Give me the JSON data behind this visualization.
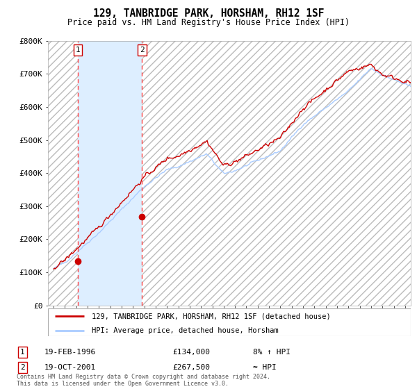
{
  "title": "129, TANBRIDGE PARK, HORSHAM, RH12 1SF",
  "subtitle": "Price paid vs. HM Land Registry's House Price Index (HPI)",
  "property_label": "129, TANBRIDGE PARK, HORSHAM, RH12 1SF (detached house)",
  "hpi_label": "HPI: Average price, detached house, Horsham",
  "sales": [
    {
      "date": 1996.12,
      "price": 134000,
      "label": "1",
      "text": "19-FEB-1996",
      "amount": "£134,000",
      "hpi_rel": "8% ↑ HPI"
    },
    {
      "date": 2001.8,
      "price": 267500,
      "label": "2",
      "text": "19-OCT-2001",
      "amount": "£267,500",
      "hpi_rel": "≈ HPI"
    }
  ],
  "hpi_color": "#aaccff",
  "property_color": "#cc0000",
  "sale_marker_color": "#cc0000",
  "dashed_line_color": "#ff4444",
  "shaded_region_color": "#ddeeff",
  "ylim": [
    0,
    800000
  ],
  "yticks": [
    0,
    100000,
    200000,
    300000,
    400000,
    500000,
    600000,
    700000,
    800000
  ],
  "ytick_labels": [
    "£0",
    "£100K",
    "£200K",
    "£300K",
    "£400K",
    "£500K",
    "£600K",
    "£700K",
    "£800K"
  ],
  "xlim": [
    1993.5,
    2025.5
  ],
  "footer": "Contains HM Land Registry data © Crown copyright and database right 2024.\nThis data is licensed under the Open Government Licence v3.0.",
  "grid_color": "#cccccc"
}
